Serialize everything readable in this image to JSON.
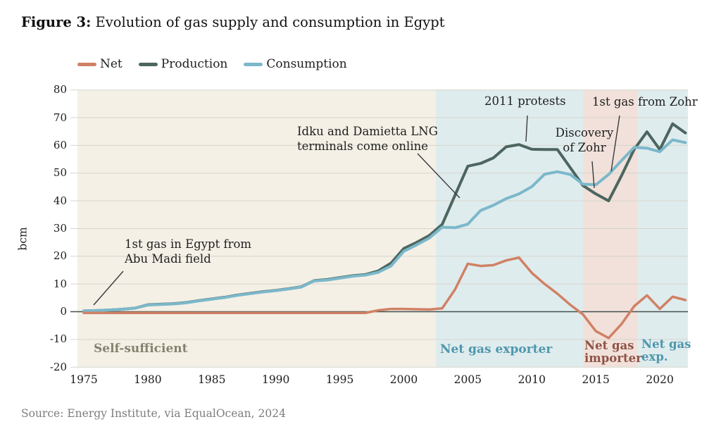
{
  "header": {
    "figure_label": "Figure 3:",
    "title": "Evolution of gas supply and consumption in Egypt"
  },
  "legend": [
    {
      "label": "Net",
      "color": "#d08165"
    },
    {
      "label": "Production",
      "color": "#4d655f"
    },
    {
      "label": "Consumption",
      "color": "#7bb8ca"
    }
  ],
  "source": "Source: Energy Institute, via EqualOcean, 2024",
  "chart_data": {
    "type": "line",
    "title": "Evolution of gas supply and consumption in Egypt",
    "xlabel": "",
    "ylabel": "bcm",
    "ylim": [
      -20,
      80
    ],
    "xlim": [
      1974.5,
      2022.2
    ],
    "grid": true,
    "legend_position": "top",
    "x_ticks": [
      1975,
      1980,
      1985,
      1990,
      1995,
      2000,
      2005,
      2010,
      2015,
      2020
    ],
    "y_ticks": [
      80,
      70,
      60,
      50,
      40,
      30,
      20,
      10,
      0,
      -10,
      -20
    ],
    "x": [
      1975,
      1976,
      1977,
      1978,
      1979,
      1980,
      1981,
      1982,
      1983,
      1984,
      1985,
      1986,
      1987,
      1988,
      1989,
      1990,
      1991,
      1992,
      1993,
      1994,
      1995,
      1996,
      1997,
      1998,
      1999,
      2000,
      2001,
      2002,
      2003,
      2004,
      2005,
      2006,
      2007,
      2008,
      2009,
      2010,
      2011,
      2012,
      2013,
      2014,
      2015,
      2016,
      2017,
      2018,
      2019,
      2020,
      2021,
      2022
    ],
    "series": [
      {
        "name": "Net",
        "color": "#d08165",
        "width": 3.5,
        "values": [
          0,
          0,
          0,
          0,
          0,
          0,
          0,
          0,
          0,
          0,
          0,
          0,
          0,
          0,
          0,
          0,
          0,
          0,
          0,
          0,
          0,
          0,
          0,
          0.5,
          1.0,
          1.0,
          0.9,
          0.8,
          1.2,
          8.0,
          17.3,
          16.5,
          16.8,
          18.5,
          19.5,
          14.0,
          10.0,
          6.5,
          2.5,
          -1.0,
          -7.0,
          -9.5,
          -4.5,
          2.0,
          5.9,
          1.0,
          5.4,
          4.2
        ]
      },
      {
        "name": "Production",
        "color": "#4d655f",
        "width": 4,
        "values": [
          0.3,
          0.4,
          0.6,
          0.9,
          1.3,
          2.5,
          2.7,
          2.9,
          3.3,
          4.0,
          4.6,
          5.2,
          6.0,
          6.6,
          7.2,
          7.7,
          8.3,
          9.0,
          11.2,
          11.6,
          12.3,
          13.0,
          13.4,
          14.7,
          17.5,
          22.8,
          25.0,
          27.5,
          31.5,
          42.0,
          52.5,
          53.5,
          55.5,
          59.5,
          60.3,
          58.6,
          58.5,
          58.5,
          52.0,
          45.5,
          42.5,
          40.0,
          49.0,
          58.6,
          64.9,
          58.5,
          67.8,
          64.5
        ]
      },
      {
        "name": "Consumption",
        "color": "#7bb8ca",
        "width": 4,
        "values": [
          0.3,
          0.4,
          0.6,
          0.9,
          1.3,
          2.4,
          2.6,
          2.8,
          3.2,
          3.9,
          4.5,
          5.1,
          5.9,
          6.5,
          7.1,
          7.6,
          8.2,
          8.9,
          11.1,
          11.4,
          12.1,
          12.8,
          13.2,
          14.2,
          16.5,
          21.8,
          24.1,
          26.6,
          30.5,
          30.3,
          31.6,
          36.5,
          38.4,
          40.8,
          42.5,
          45.1,
          49.6,
          50.5,
          49.5,
          46.0,
          45.8,
          49.5,
          54.5,
          59.3,
          59.0,
          57.7,
          62.0,
          61.0
        ]
      }
    ],
    "regions": [
      {
        "label": "Self-sufficient",
        "lines": [
          "Self-sufficient"
        ],
        "from": 1974.5,
        "to": 2002.5,
        "band_color": "#f4f0e6",
        "label_color": "#83836f"
      },
      {
        "label": "Net gas exporter",
        "lines": [
          "Net gas exporter"
        ],
        "from": 2002.5,
        "to": 2014.0,
        "band_color": "#dfecee",
        "label_color": "#4e97ac"
      },
      {
        "label": "Net gas importer",
        "lines": [
          "Net gas",
          "importer"
        ],
        "from": 2014.0,
        "to": 2018.3,
        "band_color": "#f1e1da",
        "label_color": "#8f5347"
      },
      {
        "label": "Net gas exp.",
        "lines": [
          "Net gas",
          "exp."
        ],
        "from": 2018.3,
        "to": 2022.2,
        "band_color": "#dfecee",
        "label_color": "#4e97ac"
      }
    ],
    "annotations": [
      {
        "id": "abu-madi",
        "text": "1st gas in Egypt from Abu Madi field",
        "lines": [
          "1st gas in Egypt from",
          "Abu Madi field"
        ],
        "target_year": 1976
      },
      {
        "id": "lng-terminals",
        "text": "Idku and Damietta LNG terminals come online",
        "lines": [
          "Idku and Damietta LNG",
          "terminals come online"
        ],
        "target_year": 2004.5
      },
      {
        "id": "protests-2011",
        "text": "2011 protests",
        "lines": [
          "2011 protests"
        ],
        "target_year": 2010
      },
      {
        "id": "zohr-discovery",
        "text": "Discovery of Zohr",
        "lines": [
          "Discovery",
          "of Zohr"
        ],
        "target_year": 2015
      },
      {
        "id": "zohr-first-gas",
        "text": "1st gas from Zohr",
        "lines": [
          "1st gas from Zohr"
        ],
        "target_year": 2016.5
      }
    ]
  }
}
